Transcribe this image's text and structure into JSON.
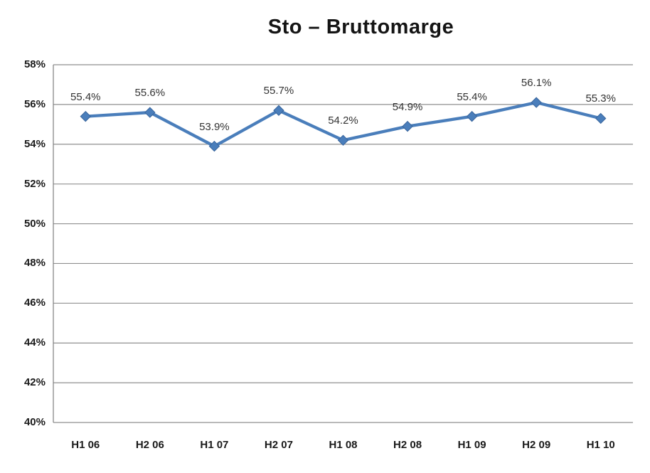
{
  "chart_data": {
    "type": "line",
    "title": "Sto – Bruttomarge",
    "categories": [
      "H1 06",
      "H2 06",
      "H1 07",
      "H2 07",
      "H1 08",
      "H2 08",
      "H1 09",
      "H2 09",
      "H1 10"
    ],
    "values": [
      55.4,
      55.6,
      53.9,
      55.7,
      54.2,
      54.9,
      55.4,
      56.1,
      55.3
    ],
    "point_labels": [
      "55.4%",
      "55.6%",
      "53.9%",
      "55.7%",
      "54.2%",
      "54.9%",
      "55.4%",
      "56.1%",
      "55.3%"
    ],
    "ylim": [
      40,
      58
    ],
    "ytick_values": [
      40,
      42,
      44,
      46,
      48,
      50,
      52,
      54,
      56,
      58
    ],
    "ytick_labels": [
      "40%",
      "42%",
      "44%",
      "46%",
      "48%",
      "50%",
      "52%",
      "54%",
      "56%",
      "58%"
    ],
    "grid": "horizontal-major",
    "legend": "none",
    "marker_shape": "diamond",
    "colors": {
      "line": "#4a7ebb",
      "marker_fill": "#4a7ebb",
      "marker_stroke": "#38649b",
      "gridline": "#8f8f8f",
      "axis": "#7f7f7f",
      "title_text": "#141414",
      "axis_text": "#1a1a1a",
      "data_label_text": "#333333",
      "background": "#ffffff"
    }
  }
}
